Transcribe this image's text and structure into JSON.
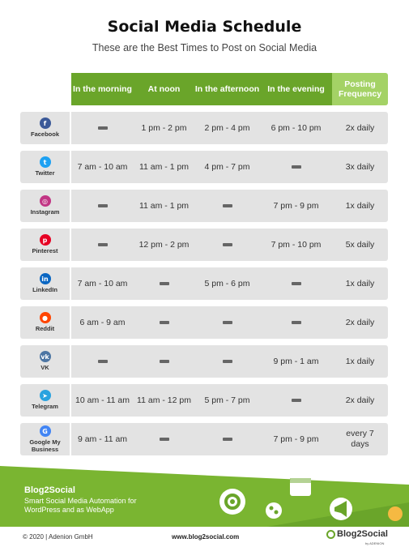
{
  "title": "Social Media Schedule",
  "subtitle": "These are the Best Times to Post on Social Media",
  "columns": [
    "In the morning",
    "At noon",
    "In the afternoon",
    "In the evening",
    "Posting Frequency"
  ],
  "rows": [
    {
      "network": "Facebook",
      "icon": "facebook-icon",
      "color": "#3b5998",
      "glyph": "f",
      "morning": "",
      "noon": "1 pm - 2 pm",
      "afternoon": "2 pm - 4 pm",
      "evening": "6 pm - 10 pm",
      "frequency": "2x daily"
    },
    {
      "network": "Twitter",
      "icon": "twitter-icon",
      "color": "#1da1f2",
      "glyph": "t",
      "morning": "7 am - 10 am",
      "noon": "11 am - 1 pm",
      "afternoon": "4 pm - 7 pm",
      "evening": "",
      "frequency": "3x daily"
    },
    {
      "network": "Instagram",
      "icon": "instagram-icon",
      "color": "#c13584",
      "glyph": "◎",
      "morning": "",
      "noon": "11 am - 1 pm",
      "afternoon": "",
      "evening": "7 pm - 9 pm",
      "frequency": "1x daily"
    },
    {
      "network": "Pinterest",
      "icon": "pinterest-icon",
      "color": "#e60023",
      "glyph": "p",
      "morning": "",
      "noon": "12 pm - 2 pm",
      "afternoon": "",
      "evening": "7 pm - 10 pm",
      "frequency": "5x daily"
    },
    {
      "network": "LinkedIn",
      "icon": "linkedin-icon",
      "color": "#0a66c2",
      "glyph": "in",
      "morning": "7 am - 10 am",
      "noon": "",
      "afternoon": "5 pm - 6 pm",
      "evening": "",
      "frequency": "1x daily"
    },
    {
      "network": "Reddit",
      "icon": "reddit-icon",
      "color": "#ff4500",
      "glyph": "●",
      "morning": "6 am - 9 am",
      "noon": "",
      "afternoon": "",
      "evening": "",
      "frequency": "2x daily"
    },
    {
      "network": "VK",
      "icon": "vk-icon",
      "color": "#4c75a3",
      "glyph": "vk",
      "morning": "",
      "noon": "",
      "afternoon": "",
      "evening": "9 pm - 1 am",
      "frequency": "1x daily"
    },
    {
      "network": "Telegram",
      "icon": "telegram-icon",
      "color": "#2aa3df",
      "glyph": "➤",
      "morning": "10 am - 11 am",
      "noon": "11 am - 12 pm",
      "afternoon": "5 pm - 7 pm",
      "evening": "",
      "frequency": "2x daily"
    },
    {
      "network": "Google My Business",
      "icon": "google-my-business-icon",
      "color": "#4285f4",
      "glyph": "G",
      "morning": "9 am - 11 am",
      "noon": "",
      "afternoon": "",
      "evening": "7 pm - 9 pm",
      "frequency": "every 7 days"
    }
  ],
  "footer": {
    "brand": "Blog2Social",
    "tagline": "Smart Social Media Automation for WordPress and as WebApp",
    "copyright": "© 2020 | Adenion GmbH",
    "website": "www.blog2social.com",
    "logo_text": "Blog2Social",
    "logo_sub": "by ADENION"
  },
  "colors": {
    "header_green": "#6aa52a",
    "frequency_green": "#a4d266",
    "row_gray": "#e3e3e3"
  }
}
